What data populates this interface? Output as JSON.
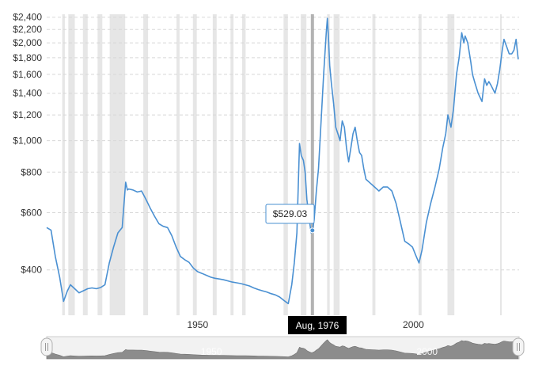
{
  "chart_data": {
    "type": "line",
    "title": "",
    "xlabel": "",
    "ylabel": "",
    "y_scale": "log",
    "ylim": [
      290,
      2450
    ],
    "xlim": [
      1915.0,
      2024.5
    ],
    "y_ticks": [
      400,
      600,
      800,
      1000,
      1200,
      1400,
      1600,
      1800,
      2000,
      2200,
      2400
    ],
    "y_tick_labels": [
      "$400",
      "$600",
      "$800",
      "$1,000",
      "$1,200",
      "$1,400",
      "$1,600",
      "$1,800",
      "$2,000",
      "$2,200",
      "$2,400"
    ],
    "x_ticks": [
      1950,
      2000
    ],
    "x_tick_labels": [
      "1950",
      "2000"
    ],
    "grid": true,
    "legend": "none",
    "series_color": "#4a90d2",
    "recession_color": "#e6e6e6",
    "recessions": [
      [
        1918.6,
        1919.2
      ],
      [
        1920.0,
        1921.5
      ],
      [
        1923.4,
        1924.5
      ],
      [
        1926.8,
        1927.9
      ],
      [
        1929.6,
        1933.2
      ],
      [
        1937.4,
        1938.5
      ],
      [
        1945.1,
        1945.8
      ],
      [
        1948.9,
        1949.8
      ],
      [
        1953.5,
        1954.4
      ],
      [
        1957.6,
        1958.3
      ],
      [
        1960.3,
        1961.1
      ],
      [
        1969.9,
        1970.9
      ],
      [
        1973.9,
        1975.2
      ],
      [
        1980.0,
        1980.6
      ],
      [
        1981.5,
        1982.9
      ],
      [
        1990.5,
        1991.2
      ],
      [
        2001.2,
        2001.9
      ],
      [
        2007.9,
        2009.5
      ],
      [
        2020.1,
        2020.4
      ]
    ],
    "series": [
      {
        "x": [
          1915.0,
          1916.0,
          1917.0,
          1918.0,
          1918.9,
          1919.8,
          1920.5,
          1921.5,
          1922.5,
          1923.5,
          1924.5,
          1925.5,
          1926.5,
          1927.5,
          1928.5,
          1929.5,
          1930.5,
          1931.5,
          1932.5,
          1933.3,
          1933.7,
          1934.0,
          1935.0,
          1936.0,
          1937.0,
          1938.0,
          1939.0,
          1940.0,
          1941.0,
          1942.0,
          1943.0,
          1944.0,
          1945.0,
          1946.0,
          1947.0,
          1948.0,
          1949.0,
          1950.0,
          1951.0,
          1952.0,
          1953.0,
          1954.0,
          1955.0,
          1956.0,
          1957.0,
          1958.0,
          1959.0,
          1960.0,
          1961.0,
          1962.0,
          1963.0,
          1964.0,
          1965.0,
          1966.0,
          1967.0,
          1968.0,
          1969.0,
          1970.0,
          1971.0,
          1971.8,
          1972.4,
          1973.0,
          1973.6,
          1974.0,
          1974.5,
          1974.9,
          1975.3,
          1975.8,
          1976.3,
          1976.6,
          1977.0,
          1977.5,
          1978.0,
          1978.6,
          1979.2,
          1979.8,
          1980.05,
          1980.3,
          1980.6,
          1981.0,
          1981.5,
          1982.0,
          1982.5,
          1983.0,
          1983.5,
          1984.0,
          1984.5,
          1985.0,
          1985.5,
          1986.0,
          1986.5,
          1987.0,
          1987.5,
          1988.0,
          1988.5,
          1989.0,
          1990.0,
          1991.0,
          1992.0,
          1993.0,
          1994.0,
          1995.0,
          1996.0,
          1997.0,
          1998.0,
          1999.0,
          1999.8,
          2000.5,
          2001.3,
          2002.0,
          2003.0,
          2004.0,
          2005.0,
          2006.0,
          2006.8,
          2007.5,
          2008.0,
          2008.7,
          2009.3,
          2010.0,
          2010.6,
          2011.2,
          2011.7,
          2012.0,
          2012.6,
          2013.3,
          2013.7,
          2014.3,
          2015.0,
          2015.9,
          2016.5,
          2017.0,
          2017.5,
          2018.0,
          2018.9,
          2019.5,
          2020.0,
          2020.6,
          2021.0,
          2021.6,
          2022.2,
          2022.8,
          2023.3,
          2023.8,
          2024.3
        ],
        "y": [
          540,
          530,
          440,
          380,
          320,
          345,
          360,
          350,
          340,
          345,
          350,
          352,
          350,
          353,
          360,
          420,
          470,
          520,
          540,
          745,
          705,
          710,
          705,
          695,
          700,
          660,
          620,
          585,
          555,
          545,
          540,
          510,
          470,
          440,
          430,
          422,
          405,
          395,
          390,
          385,
          380,
          377,
          375,
          373,
          370,
          367,
          365,
          363,
          360,
          357,
          352,
          348,
          345,
          342,
          338,
          335,
          330,
          322,
          315,
          360,
          420,
          520,
          980,
          900,
          870,
          800,
          660,
          580,
          520,
          529,
          570,
          700,
          820,
          1150,
          1600,
          2150,
          2380,
          2100,
          1700,
          1500,
          1300,
          1100,
          1050,
          1000,
          1150,
          1100,
          950,
          860,
          950,
          1050,
          1100,
          1000,
          920,
          900,
          820,
          760,
          740,
          720,
          700,
          720,
          720,
          700,
          640,
          560,
          490,
          480,
          470,
          445,
          420,
          460,
          560,
          640,
          720,
          820,
          950,
          1050,
          1200,
          1100,
          1250,
          1600,
          1800,
          2150,
          2000,
          2100,
          2000,
          1750,
          1600,
          1500,
          1400,
          1320,
          1550,
          1480,
          1520,
          1480,
          1400,
          1500,
          1650,
          1900,
          2050,
          1950,
          1850,
          1850,
          1900,
          2050,
          1780
        ]
      }
    ],
    "tooltip": {
      "x": 1976.6,
      "value": 529.03,
      "label": "$529.03"
    },
    "crosshair_label": "Aug, 1976",
    "navigator": {
      "x_ticks": [
        1950,
        2000
      ],
      "x_tick_labels": [
        "1950",
        "2000"
      ],
      "handle_left_icon": "grip-icon",
      "handle_right_icon": "grip-icon"
    }
  }
}
